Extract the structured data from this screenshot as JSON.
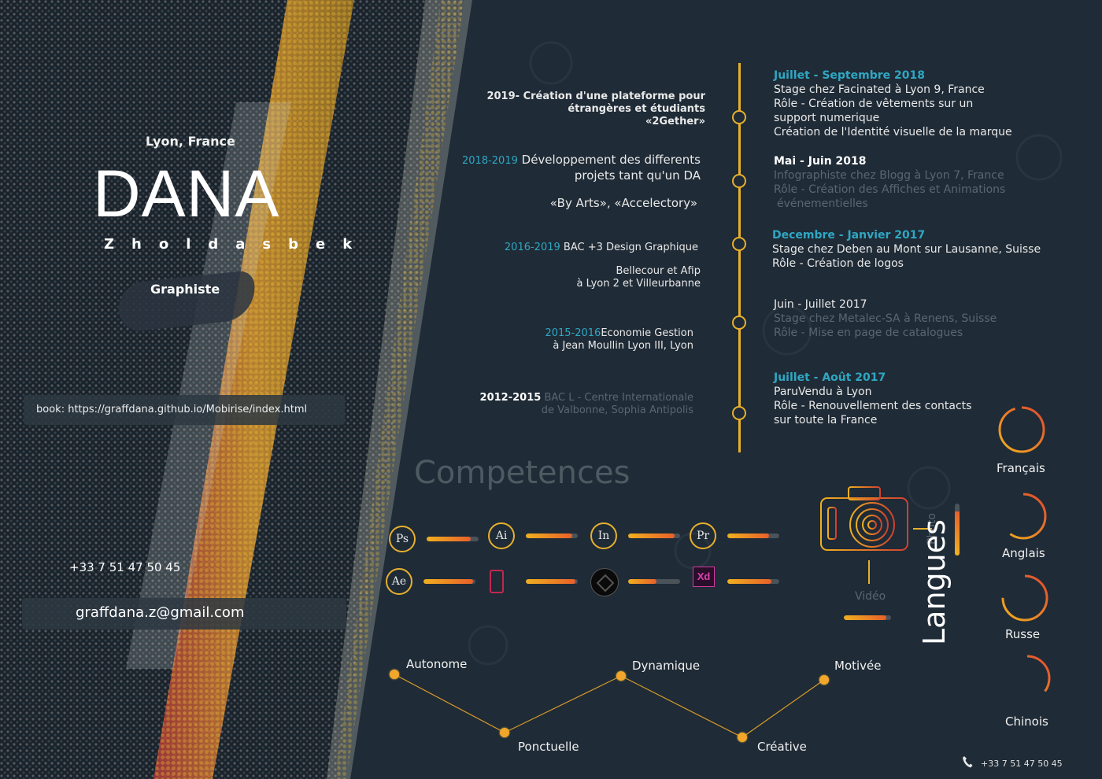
{
  "profile": {
    "city": "Lyon, France",
    "first_name": "DANA",
    "last_name": "Zholdasbek",
    "role": "Graphiste",
    "book": "book: https://graffdana.github.io/Mobirise/index.html",
    "phone": "+33 7 51 47 50 45",
    "email": "graffdana.z@gmail.com"
  },
  "education": [
    {
      "years": "2019-",
      "line1": "Création d'une plateforme pour",
      "line2": "étrangères et étudiants",
      "line3": "«2Gether»"
    },
    {
      "years": "2018-2019",
      "line1": "Développement des differents",
      "line2": "projets tant qu'un DA",
      "line3": "«By Arts», «Accelectory»"
    },
    {
      "years": "2016-2019",
      "line1": "BAC +3 Design Graphique",
      "line2": "Bellecour et Afip",
      "line3": "à Lyon 2 et Villeurbanne"
    },
    {
      "years": "2015-2016",
      "line1": "Economie Gestion",
      "line2": "à Jean Moullin Lyon III, Lyon",
      "line3": ""
    },
    {
      "years": "2012-2015",
      "line1": "BAC L - Centre Internationale",
      "line2": "de Valbonne, Sophia Antipolis",
      "line3": ""
    }
  ],
  "experience": [
    {
      "date": "Juillet - Septembre 2018",
      "l1": "Stage chez Facinated à Lyon 9, France",
      "l2": "Rôle - Création de vêtements sur un",
      "l3": "support numerique",
      "l4": "Création de l'Identité visuelle de la marque"
    },
    {
      "date": "Mai - Juin 2018",
      "l1": "Infographiste chez Blogg à Lyon 7, France",
      "l2": "Rôle - Création des Affiches et Animations",
      "l3": "événementielles",
      "l4": ""
    },
    {
      "date": "Decembre - Janvier 2017",
      "l1": "Stage chez Deben au Mont sur Lausanne, Suisse",
      "l2": "Rôle - Création de logos",
      "l3": "",
      "l4": ""
    },
    {
      "date": "Juin - Juillet 2017",
      "l1": "Stage chez Metalec-SA à Renens, Suisse",
      "l2": "Rôle - Mise en page de catalogues",
      "l3": "",
      "l4": ""
    },
    {
      "date": "Juillet - Août 2017",
      "l1": "ParuVendu à Lyon",
      "l2": "Rôle - Renouvellement des contacts",
      "l3": "sur toute la France",
      "l4": ""
    }
  ],
  "skills": {
    "title": "Competences",
    "items": [
      {
        "label": "Ps",
        "level": 0.85
      },
      {
        "label": "Ai",
        "level": 0.9
      },
      {
        "label": "In",
        "level": 0.9
      },
      {
        "label": "Pr",
        "level": 0.8
      },
      {
        "label": "Ae",
        "level": 0.95
      },
      {
        "label": "",
        "icon": "mobile-design-icon",
        "level": 0.95
      },
      {
        "label": "",
        "icon": "sketch-app-icon",
        "level": 0.55
      },
      {
        "label": "Xd",
        "level": 0.85
      }
    ],
    "photo_label": "Photo",
    "video_label": "Vidéo",
    "photo_level": 0.85,
    "video_level": 0.9
  },
  "languages": {
    "title": "Langues",
    "items": [
      {
        "name": "Français",
        "level": 0.95
      },
      {
        "name": "Anglais",
        "level": 0.6
      },
      {
        "name": "Russe",
        "level": 0.75
      },
      {
        "name": "Chinois",
        "level": 0.35
      }
    ]
  },
  "qualities": [
    "Autonome",
    "Ponctuelle",
    "Dynamique",
    "Créative",
    "Motivée"
  ],
  "colors": {
    "accent": "#e8b02e",
    "teal": "#2fa7c3",
    "background": "#1f2b36"
  }
}
